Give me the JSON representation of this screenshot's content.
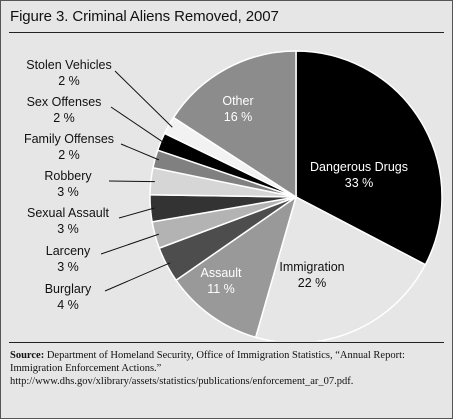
{
  "chart_data": {
    "type": "pie",
    "title": "Figure 3. Criminal Aliens Removed, 2007",
    "unit": "%",
    "slices": [
      {
        "name": "Dangerous Drugs",
        "value": 33,
        "value_label": "33 %",
        "color": "#000000",
        "text_color": "#ffffff"
      },
      {
        "name": "Immigration",
        "value": 22,
        "value_label": "22 %",
        "color": "#e6e6e6",
        "text_color": "#111111"
      },
      {
        "name": "Assault",
        "value": 11,
        "value_label": "11 %",
        "color": "#999999",
        "text_color": "#ffffff"
      },
      {
        "name": "Burglary",
        "value": 4,
        "value_label": "4 %",
        "color": "#4d4d4d",
        "text_color": "#111111"
      },
      {
        "name": "Larceny",
        "value": 3,
        "value_label": "3 %",
        "color": "#b3b3b3",
        "text_color": "#111111"
      },
      {
        "name": "Sexual Assault",
        "value": 3,
        "value_label": "3 %",
        "color": "#333333",
        "text_color": "#111111"
      },
      {
        "name": "Robbery",
        "value": 3,
        "value_label": "3 %",
        "color": "#d6d6d6",
        "text_color": "#111111"
      },
      {
        "name": "Family Offenses",
        "value": 2,
        "value_label": "2 %",
        "color": "#808080",
        "text_color": "#111111"
      },
      {
        "name": "Sex Offenses",
        "value": 2,
        "value_label": "2 %",
        "color": "#000000",
        "text_color": "#111111"
      },
      {
        "name": "Stolen Vehicles",
        "value": 2,
        "value_label": "2 %",
        "color": "#f2f2f2",
        "text_color": "#111111"
      },
      {
        "name": "Other",
        "value": 16,
        "value_label": "16 %",
        "color": "#8c8c8c",
        "text_color": "#ffffff"
      }
    ]
  },
  "source": {
    "label": "Source:",
    "text": "Department of Homeland Security, Office of Immigration Statistics, “Annual Report: Immigration Enforcement Actions.”  http://www.dhs.gov/xlibrary/assets/statistics/publications/enforcement_ar_07.pdf."
  }
}
